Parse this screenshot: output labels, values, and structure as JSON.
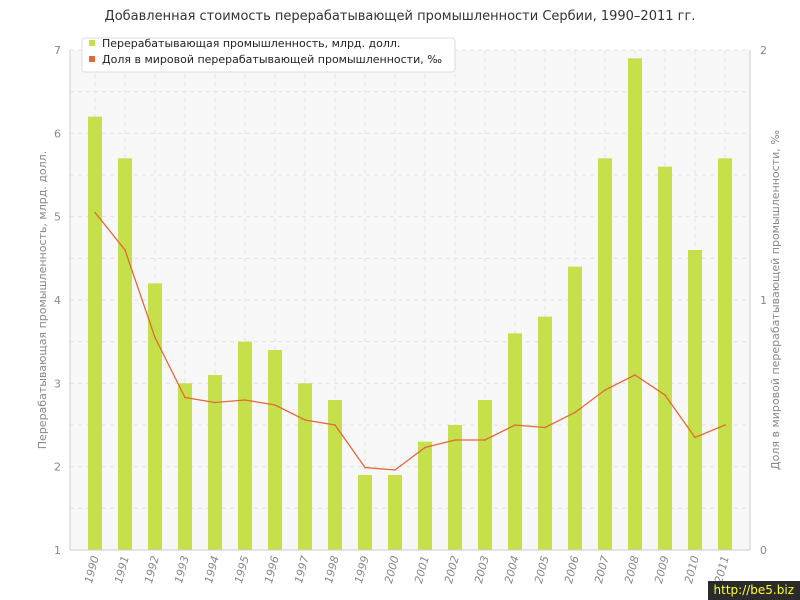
{
  "chart_data": {
    "type": "bar",
    "title": "Добавленная стоимость перерабатывающей промышленности Сербии, 1990–2011 гг.",
    "categories": [
      "1990",
      "1991",
      "1992",
      "1993",
      "1994",
      "1995",
      "1996",
      "1997",
      "1998",
      "1999",
      "2000",
      "2001",
      "2002",
      "2003",
      "2004",
      "2005",
      "2006",
      "2007",
      "2008",
      "2009",
      "2010",
      "2011"
    ],
    "series": [
      {
        "name": "Перерабатывающая промышленность, млрд. долл.",
        "type": "bar",
        "axis": "left",
        "color": "#c5e04a",
        "values": [
          6.2,
          5.7,
          4.2,
          3.0,
          3.1,
          3.5,
          3.4,
          3.0,
          2.8,
          1.9,
          1.9,
          2.3,
          2.5,
          2.8,
          3.6,
          3.8,
          4.4,
          5.7,
          6.9,
          5.6,
          4.6,
          5.7
        ]
      },
      {
        "name": "Доля в мировой перерабатывающей промышленности, ‰",
        "type": "line",
        "axis": "right",
        "color": "#e06a3a",
        "values": [
          1.35,
          1.2,
          0.85,
          0.61,
          0.59,
          0.6,
          0.58,
          0.52,
          0.5,
          0.33,
          0.32,
          0.41,
          0.44,
          0.44,
          0.5,
          0.49,
          0.55,
          0.64,
          0.7,
          0.62,
          0.45,
          0.5
        ]
      }
    ],
    "ylabel": "Перерабатывающая промышленность, млрд. долл.",
    "ylabel_right": "Доля в мировой перерабатывающей промышленности, ‰",
    "ylim": [
      1,
      7
    ],
    "ylim_right": [
      0,
      2
    ],
    "yticks": [
      1,
      2,
      3,
      4,
      5,
      6,
      7
    ],
    "yticks_right": [
      0,
      1,
      2
    ],
    "grid": true,
    "legend_position": "top-left"
  },
  "watermark": "http://be5.biz"
}
